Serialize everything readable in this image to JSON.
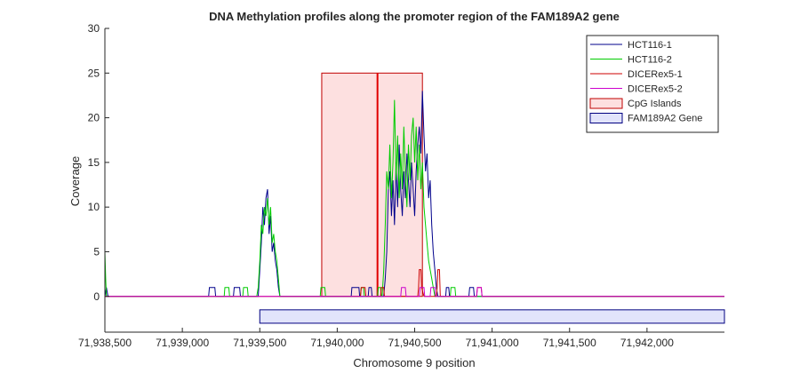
{
  "chart_data": {
    "type": "line",
    "title": "DNA Methylation profiles along the promoter region of the FAM189A2 gene",
    "xlabel": "Chromosome 9 position",
    "ylabel": "Coverage",
    "xlim": [
      71938500,
      71942500
    ],
    "ylim": [
      -4,
      30
    ],
    "x_ticks": [
      71938500,
      71939000,
      71939500,
      71940000,
      71940500,
      71941000,
      71941500,
      71942000
    ],
    "x_tick_labels": [
      "71,938,500",
      "71,939,000",
      "71,939,500",
      "71,940,000",
      "71,940,500",
      "71,941,000",
      "71,941,500",
      "71,942,000"
    ],
    "y_ticks": [
      0,
      5,
      10,
      15,
      20,
      25,
      30
    ],
    "y_tick_labels": [
      "0",
      "5",
      "10",
      "15",
      "20",
      "25",
      "30"
    ],
    "grid": false,
    "legend_position": "top-right",
    "series": [
      {
        "name": "HCT116-1",
        "color": "#00008b",
        "points": [
          [
            71938500,
            0
          ],
          [
            71938510,
            1
          ],
          [
            71938520,
            0
          ],
          [
            71939170,
            0
          ],
          [
            71939175,
            1
          ],
          [
            71939210,
            1
          ],
          [
            71939215,
            0
          ],
          [
            71939330,
            0
          ],
          [
            71939335,
            1
          ],
          [
            71939370,
            1
          ],
          [
            71939375,
            0
          ],
          [
            71939490,
            0
          ],
          [
            71939500,
            3
          ],
          [
            71939510,
            6
          ],
          [
            71939520,
            10
          ],
          [
            71939530,
            8
          ],
          [
            71939540,
            11
          ],
          [
            71939550,
            12
          ],
          [
            71939560,
            7
          ],
          [
            71939570,
            9
          ],
          [
            71939580,
            5
          ],
          [
            71939590,
            6
          ],
          [
            71939600,
            4
          ],
          [
            71939610,
            3
          ],
          [
            71939620,
            1
          ],
          [
            71939630,
            0
          ],
          [
            71940090,
            0
          ],
          [
            71940095,
            1
          ],
          [
            71940140,
            1
          ],
          [
            71940145,
            0
          ],
          [
            71940200,
            0
          ],
          [
            71940205,
            1
          ],
          [
            71940220,
            1
          ],
          [
            71940225,
            0
          ],
          [
            71940300,
            0
          ],
          [
            71940310,
            2
          ],
          [
            71940320,
            5
          ],
          [
            71940330,
            12
          ],
          [
            71940340,
            14
          ],
          [
            71940350,
            9
          ],
          [
            71940360,
            13
          ],
          [
            71940370,
            8
          ],
          [
            71940380,
            15
          ],
          [
            71940390,
            10
          ],
          [
            71940400,
            17
          ],
          [
            71940410,
            12
          ],
          [
            71940420,
            9
          ],
          [
            71940430,
            14
          ],
          [
            71940440,
            11
          ],
          [
            71940450,
            16
          ],
          [
            71940460,
            13
          ],
          [
            71940470,
            10
          ],
          [
            71940480,
            15
          ],
          [
            71940490,
            12
          ],
          [
            71940500,
            9
          ],
          [
            71940510,
            14
          ],
          [
            71940520,
            17
          ],
          [
            71940530,
            19
          ],
          [
            71940540,
            16
          ],
          [
            71940550,
            23
          ],
          [
            71940560,
            18
          ],
          [
            71940570,
            14
          ],
          [
            71940580,
            16
          ],
          [
            71940590,
            11
          ],
          [
            71940600,
            13
          ],
          [
            71940610,
            8
          ],
          [
            71940620,
            5
          ],
          [
            71940630,
            3
          ],
          [
            71940640,
            1
          ],
          [
            71940650,
            0
          ],
          [
            71940700,
            0
          ],
          [
            71940705,
            1
          ],
          [
            71940720,
            1
          ],
          [
            71940725,
            0
          ],
          [
            71940850,
            0
          ],
          [
            71940855,
            1
          ],
          [
            71940880,
            1
          ],
          [
            71940885,
            0
          ],
          [
            71942500,
            0
          ]
        ]
      },
      {
        "name": "HCT116-2",
        "color": "#00cc00",
        "points": [
          [
            71938500,
            5
          ],
          [
            71938505,
            2
          ],
          [
            71938510,
            0
          ],
          [
            71939270,
            0
          ],
          [
            71939275,
            1
          ],
          [
            71939300,
            1
          ],
          [
            71939305,
            0
          ],
          [
            71939390,
            0
          ],
          [
            71939395,
            1
          ],
          [
            71939420,
            1
          ],
          [
            71939425,
            0
          ],
          [
            71939480,
            0
          ],
          [
            71939490,
            1
          ],
          [
            71939500,
            4
          ],
          [
            71939510,
            8
          ],
          [
            71939520,
            7
          ],
          [
            71939530,
            10
          ],
          [
            71939540,
            9
          ],
          [
            71939550,
            11
          ],
          [
            71939560,
            8
          ],
          [
            71939570,
            10
          ],
          [
            71939580,
            6
          ],
          [
            71939590,
            7
          ],
          [
            71939600,
            5
          ],
          [
            71939610,
            4
          ],
          [
            71939620,
            2
          ],
          [
            71939630,
            0
          ],
          [
            71939890,
            0
          ],
          [
            71939895,
            1
          ],
          [
            71939920,
            1
          ],
          [
            71939925,
            0
          ],
          [
            71940150,
            0
          ],
          [
            71940155,
            1
          ],
          [
            71940170,
            1
          ],
          [
            71940175,
            0
          ],
          [
            71940260,
            0
          ],
          [
            71940265,
            1
          ],
          [
            71940280,
            1
          ],
          [
            71940285,
            0
          ],
          [
            71940290,
            0
          ],
          [
            71940300,
            3
          ],
          [
            71940310,
            8
          ],
          [
            71940320,
            14
          ],
          [
            71940330,
            12
          ],
          [
            71940340,
            17
          ],
          [
            71940350,
            11
          ],
          [
            71940360,
            15
          ],
          [
            71940370,
            22
          ],
          [
            71940380,
            13
          ],
          [
            71940390,
            18
          ],
          [
            71940400,
            11
          ],
          [
            71940410,
            16
          ],
          [
            71940420,
            12
          ],
          [
            71940430,
            19
          ],
          [
            71940440,
            14
          ],
          [
            71940450,
            10
          ],
          [
            71940460,
            17
          ],
          [
            71940470,
            13
          ],
          [
            71940480,
            18
          ],
          [
            71940490,
            20
          ],
          [
            71940500,
            15
          ],
          [
            71940510,
            19
          ],
          [
            71940520,
            13
          ],
          [
            71940530,
            17
          ],
          [
            71940540,
            12
          ],
          [
            71940550,
            15
          ],
          [
            71940560,
            10
          ],
          [
            71940570,
            8
          ],
          [
            71940580,
            6
          ],
          [
            71940590,
            4
          ],
          [
            71940600,
            3
          ],
          [
            71940610,
            2
          ],
          [
            71940620,
            1
          ],
          [
            71940630,
            0
          ],
          [
            71940730,
            0
          ],
          [
            71940735,
            1
          ],
          [
            71940760,
            1
          ],
          [
            71940765,
            0
          ],
          [
            71942500,
            0
          ]
        ]
      },
      {
        "name": "DICERex5-1",
        "color": "#cc0000",
        "points": [
          [
            71938500,
            0
          ],
          [
            71940150,
            0
          ],
          [
            71940155,
            1
          ],
          [
            71940180,
            1
          ],
          [
            71940185,
            0
          ],
          [
            71940280,
            0
          ],
          [
            71940285,
            1
          ],
          [
            71940300,
            1
          ],
          [
            71940305,
            0
          ],
          [
            71940520,
            0
          ],
          [
            71940525,
            1
          ],
          [
            71940530,
            3
          ],
          [
            71940540,
            3
          ],
          [
            71940545,
            1
          ],
          [
            71940560,
            0
          ],
          [
            71940640,
            0
          ],
          [
            71940645,
            1
          ],
          [
            71940650,
            3
          ],
          [
            71940660,
            3
          ],
          [
            71940665,
            0
          ],
          [
            71940900,
            0
          ],
          [
            71940905,
            1
          ],
          [
            71940930,
            1
          ],
          [
            71940935,
            0
          ],
          [
            71942500,
            0
          ]
        ]
      },
      {
        "name": "DICERex5-2",
        "color": "#cc00cc",
        "points": [
          [
            71938500,
            0
          ],
          [
            71940410,
            0
          ],
          [
            71940415,
            1
          ],
          [
            71940440,
            1
          ],
          [
            71940445,
            0
          ],
          [
            71940530,
            0
          ],
          [
            71940535,
            1
          ],
          [
            71940560,
            1
          ],
          [
            71940565,
            0
          ],
          [
            71940600,
            0
          ],
          [
            71940605,
            1
          ],
          [
            71940630,
            1
          ],
          [
            71940635,
            0
          ],
          [
            71940900,
            0
          ],
          [
            71940905,
            1
          ],
          [
            71940930,
            1
          ],
          [
            71940935,
            0
          ],
          [
            71942500,
            0
          ]
        ]
      }
    ],
    "regions": [
      {
        "name": "CpG Islands",
        "x_start": 71939900,
        "x_end": 71940550,
        "y_bottom": 0,
        "y_top": 25,
        "fill": "#fde0e0",
        "stroke": "#c00000",
        "marker_x": 71940260,
        "marker_color": "#e00000"
      },
      {
        "name": "FAM189A2 Gene",
        "x_start": 71939500,
        "x_end": 71942500,
        "y_bottom": -3,
        "y_top": -1.5,
        "fill": "#e2e4fb",
        "stroke": "#000080"
      }
    ]
  }
}
